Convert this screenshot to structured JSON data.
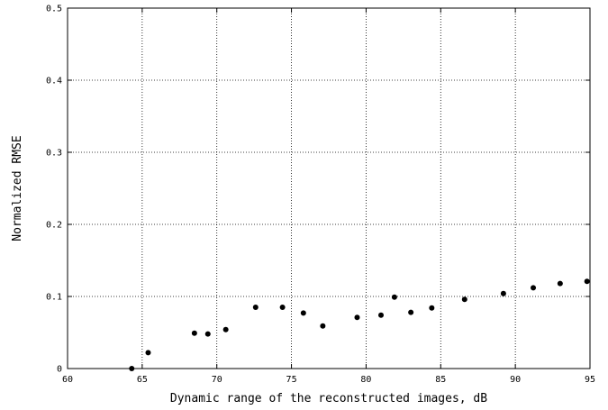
{
  "chart_data": {
    "type": "scatter",
    "xlabel": "Dynamic range of the reconstructed images, dB",
    "ylabel": "Normalized RMSE",
    "xlim": [
      60,
      95
    ],
    "ylim": [
      0,
      0.5
    ],
    "xticks": [
      60,
      65,
      70,
      75,
      80,
      85,
      90,
      95
    ],
    "xtick_labels": [
      "60",
      "65",
      "70",
      "75",
      "80",
      "85",
      "90",
      "95"
    ],
    "yticks": [
      0,
      0.1,
      0.2,
      0.3,
      0.4,
      0.5
    ],
    "ytick_labels": [
      "0",
      "0.1",
      "0.2",
      "0.3",
      "0.4",
      "0.5"
    ],
    "grid": true,
    "marker_color": "#000000",
    "points": [
      {
        "x": 64.3,
        "y": 0.0
      },
      {
        "x": 65.4,
        "y": 0.022
      },
      {
        "x": 68.5,
        "y": 0.049
      },
      {
        "x": 69.4,
        "y": 0.048
      },
      {
        "x": 70.6,
        "y": 0.054
      },
      {
        "x": 72.6,
        "y": 0.085
      },
      {
        "x": 74.4,
        "y": 0.085
      },
      {
        "x": 75.8,
        "y": 0.077
      },
      {
        "x": 77.1,
        "y": 0.059
      },
      {
        "x": 79.4,
        "y": 0.071
      },
      {
        "x": 81.0,
        "y": 0.074
      },
      {
        "x": 81.9,
        "y": 0.099
      },
      {
        "x": 83.0,
        "y": 0.078
      },
      {
        "x": 84.4,
        "y": 0.084
      },
      {
        "x": 86.6,
        "y": 0.096
      },
      {
        "x": 89.2,
        "y": 0.104
      },
      {
        "x": 91.2,
        "y": 0.112
      },
      {
        "x": 93.0,
        "y": 0.118
      },
      {
        "x": 94.8,
        "y": 0.121
      }
    ]
  }
}
